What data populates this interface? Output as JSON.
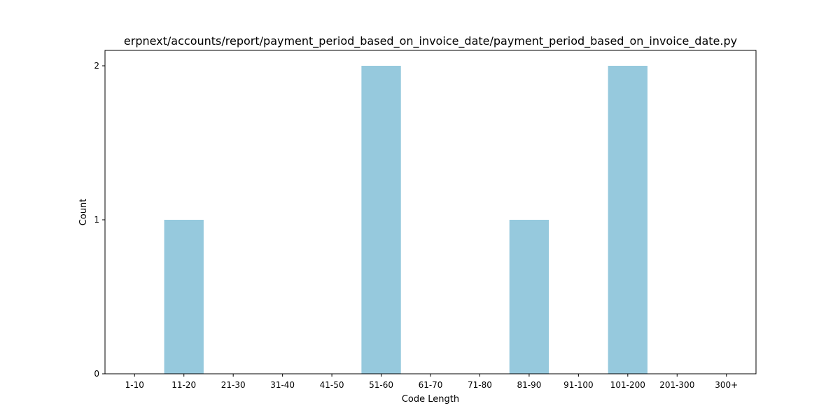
{
  "chart_data": {
    "type": "bar",
    "title": "erpnext/accounts/report/payment_period_based_on_invoice_date/payment_period_based_on_invoice_date.py",
    "xlabel": "Code Length",
    "ylabel": "Count",
    "categories": [
      "1-10",
      "11-20",
      "21-30",
      "31-40",
      "41-50",
      "51-60",
      "61-70",
      "71-80",
      "81-90",
      "91-100",
      "101-200",
      "201-300",
      "300+"
    ],
    "values": [
      0,
      1,
      0,
      0,
      0,
      2,
      0,
      0,
      1,
      0,
      2,
      0,
      0
    ],
    "ylim": [
      0,
      2.1
    ],
    "yticks": [
      0,
      1,
      2
    ],
    "bar_color": "#96c9dd",
    "grid": false,
    "legend": false
  }
}
